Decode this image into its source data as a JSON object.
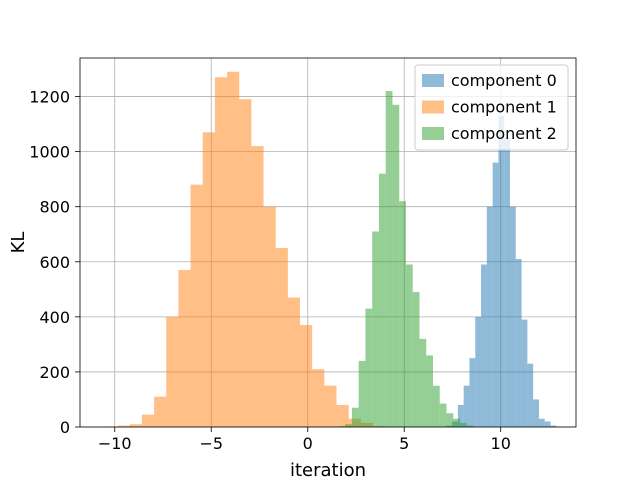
{
  "chart_data": {
    "type": "bar",
    "subtype": "histogram",
    "title": "",
    "xlabel": "iteration",
    "ylabel": "KL",
    "xlim": [
      -11.8,
      13.9
    ],
    "ylim": [
      0,
      1340
    ],
    "grid": true,
    "xticks": [
      -10,
      -5,
      0,
      5,
      10
    ],
    "yticks": [
      0,
      200,
      400,
      600,
      800,
      1000,
      1200
    ],
    "xtick_labels": [
      "−10",
      "−5",
      "0",
      "5",
      "10"
    ],
    "ytick_labels": [
      "0",
      "200",
      "400",
      "600",
      "800",
      "1000",
      "1200"
    ],
    "legend_position": "top-right",
    "series": [
      {
        "name": "component 0",
        "color": "#1f77b4",
        "bins": [
          {
            "x0": 7.18,
            "x1": 7.48,
            "count": 5
          },
          {
            "x0": 7.48,
            "x1": 7.78,
            "count": 20
          },
          {
            "x0": 7.78,
            "x1": 8.08,
            "count": 80
          },
          {
            "x0": 8.08,
            "x1": 8.38,
            "count": 150
          },
          {
            "x0": 8.38,
            "x1": 8.68,
            "count": 250
          },
          {
            "x0": 8.68,
            "x1": 8.98,
            "count": 400
          },
          {
            "x0": 8.98,
            "x1": 9.28,
            "count": 590
          },
          {
            "x0": 9.28,
            "x1": 9.58,
            "count": 800
          },
          {
            "x0": 9.58,
            "x1": 9.88,
            "count": 960
          },
          {
            "x0": 9.88,
            "x1": 10.18,
            "count": 1130
          },
          {
            "x0": 10.18,
            "x1": 10.48,
            "count": 1050
          },
          {
            "x0": 10.48,
            "x1": 10.78,
            "count": 800
          },
          {
            "x0": 10.78,
            "x1": 11.08,
            "count": 610
          },
          {
            "x0": 11.08,
            "x1": 11.38,
            "count": 390
          },
          {
            "x0": 11.38,
            "x1": 11.68,
            "count": 230
          },
          {
            "x0": 11.68,
            "x1": 11.98,
            "count": 100
          },
          {
            "x0": 11.98,
            "x1": 12.28,
            "count": 30
          },
          {
            "x0": 12.28,
            "x1": 12.58,
            "count": 20
          },
          {
            "x0": 12.58,
            "x1": 12.88,
            "count": 5
          }
        ]
      },
      {
        "name": "component 1",
        "color": "#ff7f0e",
        "bins": [
          {
            "x0": -10.48,
            "x1": -9.85,
            "count": 2
          },
          {
            "x0": -9.85,
            "x1": -9.22,
            "count": 5
          },
          {
            "x0": -9.22,
            "x1": -8.59,
            "count": 10
          },
          {
            "x0": -8.59,
            "x1": -7.96,
            "count": 45
          },
          {
            "x0": -7.96,
            "x1": -7.33,
            "count": 110
          },
          {
            "x0": -7.33,
            "x1": -6.7,
            "count": 400
          },
          {
            "x0": -6.7,
            "x1": -6.07,
            "count": 570
          },
          {
            "x0": -6.07,
            "x1": -5.44,
            "count": 880
          },
          {
            "x0": -5.44,
            "x1": -4.81,
            "count": 1070
          },
          {
            "x0": -4.81,
            "x1": -4.18,
            "count": 1270
          },
          {
            "x0": -4.18,
            "x1": -3.55,
            "count": 1290
          },
          {
            "x0": -3.55,
            "x1": -2.92,
            "count": 1190
          },
          {
            "x0": -2.92,
            "x1": -2.29,
            "count": 1020
          },
          {
            "x0": -2.29,
            "x1": -1.66,
            "count": 800
          },
          {
            "x0": -1.66,
            "x1": -1.03,
            "count": 650
          },
          {
            "x0": -1.03,
            "x1": -0.4,
            "count": 470
          },
          {
            "x0": -0.4,
            "x1": 0.23,
            "count": 370
          },
          {
            "x0": 0.23,
            "x1": 0.86,
            "count": 210
          },
          {
            "x0": 0.86,
            "x1": 1.49,
            "count": 150
          },
          {
            "x0": 1.49,
            "x1": 2.12,
            "count": 80
          },
          {
            "x0": 2.12,
            "x1": 2.75,
            "count": 30
          },
          {
            "x0": 2.75,
            "x1": 3.38,
            "count": 15
          },
          {
            "x0": 3.38,
            "x1": 4.01,
            "count": 3
          }
        ]
      },
      {
        "name": "component 2",
        "color": "#2ca02c",
        "bins": [
          {
            "x0": 1.59,
            "x1": 1.94,
            "count": 3
          },
          {
            "x0": 1.94,
            "x1": 2.29,
            "count": 10
          },
          {
            "x0": 2.29,
            "x1": 2.64,
            "count": 70
          },
          {
            "x0": 2.64,
            "x1": 2.99,
            "count": 240
          },
          {
            "x0": 2.99,
            "x1": 3.34,
            "count": 430
          },
          {
            "x0": 3.34,
            "x1": 3.69,
            "count": 710
          },
          {
            "x0": 3.69,
            "x1": 4.04,
            "count": 920
          },
          {
            "x0": 4.04,
            "x1": 4.39,
            "count": 1220
          },
          {
            "x0": 4.39,
            "x1": 4.74,
            "count": 1170
          },
          {
            "x0": 4.74,
            "x1": 5.09,
            "count": 820
          },
          {
            "x0": 5.09,
            "x1": 5.44,
            "count": 590
          },
          {
            "x0": 5.44,
            "x1": 5.79,
            "count": 490
          },
          {
            "x0": 5.79,
            "x1": 6.14,
            "count": 320
          },
          {
            "x0": 6.14,
            "x1": 6.49,
            "count": 260
          },
          {
            "x0": 6.49,
            "x1": 6.84,
            "count": 150
          },
          {
            "x0": 6.84,
            "x1": 7.19,
            "count": 85
          },
          {
            "x0": 7.19,
            "x1": 7.54,
            "count": 50
          },
          {
            "x0": 7.54,
            "x1": 7.89,
            "count": 30
          },
          {
            "x0": 7.89,
            "x1": 8.24,
            "count": 15
          },
          {
            "x0": 8.24,
            "x1": 8.59,
            "count": 5
          }
        ]
      }
    ]
  }
}
